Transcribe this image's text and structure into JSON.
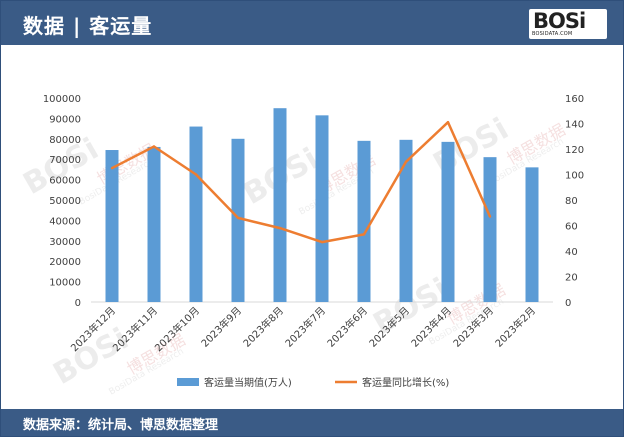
{
  "header": {
    "title": "数据 | 客运量",
    "logo_word": "BOSi",
    "logo_sub": "BOSIDATA.COM"
  },
  "footer": {
    "source": "数据来源：统计局、博思数据整理"
  },
  "watermark": {
    "brand": "BOSi",
    "cn": "博思数据",
    "en": "BosiData Research"
  },
  "colors": {
    "header_bg": "#3a5b86",
    "bar": "#5b9bd5",
    "line": "#ed7d31"
  },
  "chart_data": {
    "type": "bar",
    "categories": [
      "2023年12月",
      "2023年11月",
      "2023年10月",
      "2023年9月",
      "2023年8月",
      "2023年7月",
      "2023年6月",
      "2023年5月",
      "2023年4月",
      "2023年3月",
      "2023年2月"
    ],
    "series": [
      {
        "name": "客运量当期值(万人)",
        "type": "bar",
        "axis": "left",
        "values": [
          74500,
          76000,
          86000,
          80000,
          95000,
          91500,
          79000,
          79500,
          78500,
          71000,
          66000
        ]
      },
      {
        "name": "客运量同比增长(%)",
        "type": "line",
        "axis": "right",
        "values": [
          105,
          122,
          100,
          66,
          58,
          47,
          53,
          110,
          141,
          67,
          null
        ]
      }
    ],
    "y_left": {
      "min": 0,
      "max": 100000,
      "step": 10000,
      "ticks": [
        "0",
        "10000",
        "20000",
        "30000",
        "40000",
        "50000",
        "60000",
        "70000",
        "80000",
        "90000",
        "100000"
      ]
    },
    "y_right": {
      "min": 0,
      "max": 160,
      "step": 20,
      "ticks": [
        "0",
        "20",
        "40",
        "60",
        "80",
        "100",
        "120",
        "140",
        "160"
      ]
    },
    "grid": false,
    "legend_position": "bottom"
  }
}
